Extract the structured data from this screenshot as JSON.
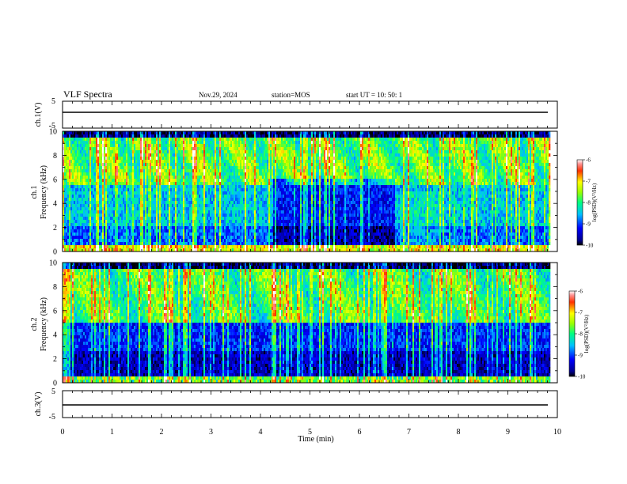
{
  "header": {
    "title": "VLF Spectra",
    "date": "Nov.29, 2024",
    "station": "station=MOS",
    "start": "start  UT =   10: 50: 1"
  },
  "chart_data": [
    {
      "type": "line",
      "name": "ch1-waveform",
      "ylabel": "ch.1(V)",
      "ylim": [
        -5,
        5
      ],
      "yticks": [
        "5",
        "-5"
      ],
      "xlim": [
        0,
        10
      ],
      "x": [
        0,
        1,
        2,
        3,
        4,
        5,
        6,
        7,
        8,
        9,
        9.85
      ],
      "y": [
        0.2,
        0.2,
        0.2,
        0.2,
        0.2,
        0.2,
        0.2,
        0.2,
        0.2,
        0.2,
        0.2
      ]
    },
    {
      "type": "heatmap",
      "name": "ch1-spectrogram",
      "ylabel": "ch.1\nFrequency (kHz)",
      "ylim": [
        0,
        10
      ],
      "yticks": [
        "0",
        "2",
        "4",
        "6",
        "8",
        "10"
      ],
      "xlim": [
        0,
        10
      ],
      "data_end_min": 9.85,
      "colorbar": {
        "label": "log(PSD)(V²/Hz)",
        "range": [
          -10,
          -6
        ],
        "ticks": [
          "-6",
          "-7",
          "-8",
          "-9",
          "-10"
        ]
      }
    },
    {
      "type": "heatmap",
      "name": "ch2-spectrogram",
      "ylabel": "ch.2\nFrequency (kHz)",
      "ylim": [
        0,
        10
      ],
      "yticks": [
        "0",
        "2",
        "4",
        "6",
        "8",
        "10"
      ],
      "xlim": [
        0,
        10
      ],
      "data_end_min": 9.85,
      "colorbar": {
        "label": "log(PSD)(V²/Hz)",
        "range": [
          -10,
          -6
        ],
        "ticks": [
          "-6",
          "-7",
          "-8",
          "-9",
          "-10"
        ]
      }
    },
    {
      "type": "line",
      "name": "ch3-waveform",
      "ylabel": "ch.3(V)",
      "ylim": [
        -5,
        5
      ],
      "yticks": [
        "5",
        "-5"
      ],
      "xlim": [
        0,
        10
      ],
      "x": [
        0,
        1,
        2,
        3,
        4,
        5,
        6,
        7,
        8,
        9,
        9.85
      ],
      "y": [
        0.1,
        0.1,
        0.1,
        0.1,
        0.1,
        0.1,
        0.1,
        0.1,
        0.1,
        0.1,
        0.1
      ]
    }
  ],
  "xaxis": {
    "label": "Time  (min)",
    "ticks": [
      "0",
      "1",
      "2",
      "3",
      "4",
      "5",
      "6",
      "7",
      "8",
      "9",
      "10"
    ]
  }
}
